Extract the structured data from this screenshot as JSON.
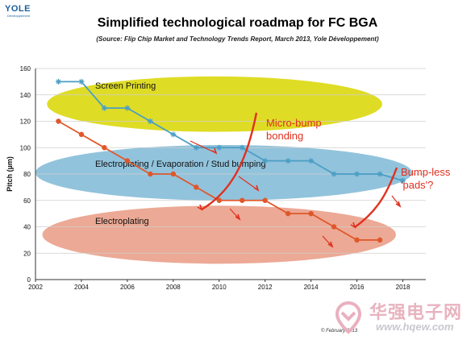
{
  "header": {
    "logo_text": "YOLE",
    "logo_sub": "Développement",
    "title": "Simplified technological roadmap for FC BGA",
    "subtitle": "(Source: Flip Chip Market and Technology Trends Report, March 2013, Yole Développement)"
  },
  "footer": {
    "copyright": "© February 2013"
  },
  "watermark": {
    "brand": "华强电子网",
    "url": "www.hqew.com"
  },
  "chart_data": {
    "type": "line",
    "title": "Simplified technological roadmap for FC BGA",
    "ylabel": "Pitch (µm)",
    "xlabel": "",
    "xlim": [
      2002,
      2019
    ],
    "ylim": [
      0,
      160
    ],
    "x_ticks": [
      2002,
      2004,
      2006,
      2008,
      2010,
      2012,
      2014,
      2016,
      2018
    ],
    "y_ticks": [
      0,
      20,
      40,
      60,
      80,
      100,
      120,
      140,
      160
    ],
    "grid": true,
    "series": [
      {
        "name": "",
        "color": "#4a9ec4",
        "marker": "star",
        "x": [
          2003,
          2004,
          2005,
          2006,
          2007,
          2008,
          2009,
          2010,
          2011,
          2012,
          2013,
          2014,
          2015,
          2016,
          2017,
          2018
        ],
        "values": [
          150,
          150,
          130,
          130,
          120,
          110,
          100,
          100,
          100,
          90,
          90,
          90,
          80,
          80,
          80,
          75
        ]
      },
      {
        "name": "",
        "color": "#e0572a",
        "marker": "circle",
        "x": [
          2003,
          2004,
          2005,
          2006,
          2007,
          2008,
          2009,
          2010,
          2011,
          2012,
          2013,
          2014,
          2015,
          2016,
          2017
        ],
        "values": [
          120,
          110,
          100,
          90,
          80,
          80,
          70,
          60,
          60,
          60,
          50,
          50,
          40,
          30,
          30
        ]
      }
    ],
    "regions": [
      {
        "label": "Screen Printing",
        "color": "#d9d600",
        "x_center": 2009.8,
        "y_center": 133,
        "x_radius": 7.3,
        "y_radius": 21
      },
      {
        "label": "Electroplating / Evaporation / Stud bumping",
        "color": "#7fb8d6",
        "x_center": 2010.2,
        "y_center": 81,
        "x_radius": 8.2,
        "y_radius": 21
      },
      {
        "label": "Electroplating",
        "color": "#e99a82",
        "x_center": 2010.0,
        "y_center": 34,
        "x_radius": 7.7,
        "y_radius": 22
      }
    ],
    "annotations": [
      {
        "text": "Micro-bump\nbonding",
        "color": "#e0301e"
      },
      {
        "text": "Bump-less\n'pads'?",
        "color": "#e0301e"
      }
    ]
  }
}
